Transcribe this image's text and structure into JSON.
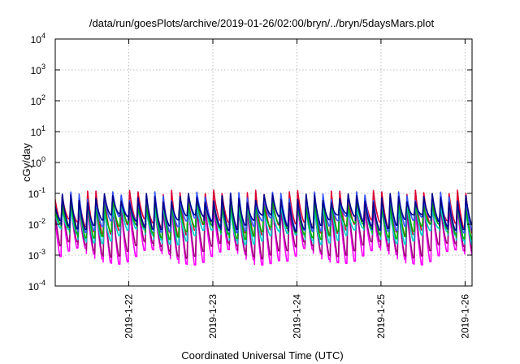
{
  "chart_data": {
    "type": "line",
    "title": "/data/run/goesPlots/archive/2019-01-26/02:00/bryn/../bryn/5daysMars.plot",
    "xlabel": "Coordinated Universal Time (UTC)",
    "ylabel": "cGy/day",
    "y_scale": "log",
    "ylim": [
      0.0001,
      10000
    ],
    "xlim": [
      "2019-01-21T03:00",
      "2019-01-26T02:00"
    ],
    "grid": true,
    "legend": "none",
    "x_ticks": [
      "2019-1-22",
      "2019-1-23",
      "2019-1-24",
      "2019-1-25",
      "2019-1-26"
    ],
    "y_ticks": [
      {
        "base": "10",
        "exp": "-4",
        "value": 0.0001
      },
      {
        "base": "10",
        "exp": "-3",
        "value": 0.001
      },
      {
        "base": "10",
        "exp": "-2",
        "value": 0.01
      },
      {
        "base": "10",
        "exp": "-1",
        "value": 0.1
      },
      {
        "base": "10",
        "exp": "0",
        "value": 1
      },
      {
        "base": "10",
        "exp": "1",
        "value": 10
      },
      {
        "base": "10",
        "exp": "2",
        "value": 100
      },
      {
        "base": "10",
        "exp": "3",
        "value": 1000
      },
      {
        "base": "10",
        "exp": "4",
        "value": 10000
      }
    ],
    "series": [
      {
        "color": "#ff00ff",
        "peak": 0.045,
        "trough": 0.0009
      },
      {
        "color": "#a0007a",
        "peak": 0.05,
        "trough": 0.0015
      },
      {
        "color": "#dd0033",
        "peak": 0.09,
        "trough": 0.008
      },
      {
        "color": "#00cccc",
        "peak": 0.04,
        "trough": 0.004
      },
      {
        "color": "#00aa00",
        "peak": 0.055,
        "trough": 0.006
      },
      {
        "color": "#3355ff",
        "peak": 0.08,
        "trough": 0.01
      },
      {
        "color": "#000088",
        "peak": 0.07,
        "trough": 0.012
      }
    ],
    "periodic_pattern": {
      "period_days": 0.1,
      "shape": "sawtooth: sharp rise to peak, decay to trough",
      "dropouts_near": [
        "2019-01-23T20:00"
      ]
    }
  }
}
